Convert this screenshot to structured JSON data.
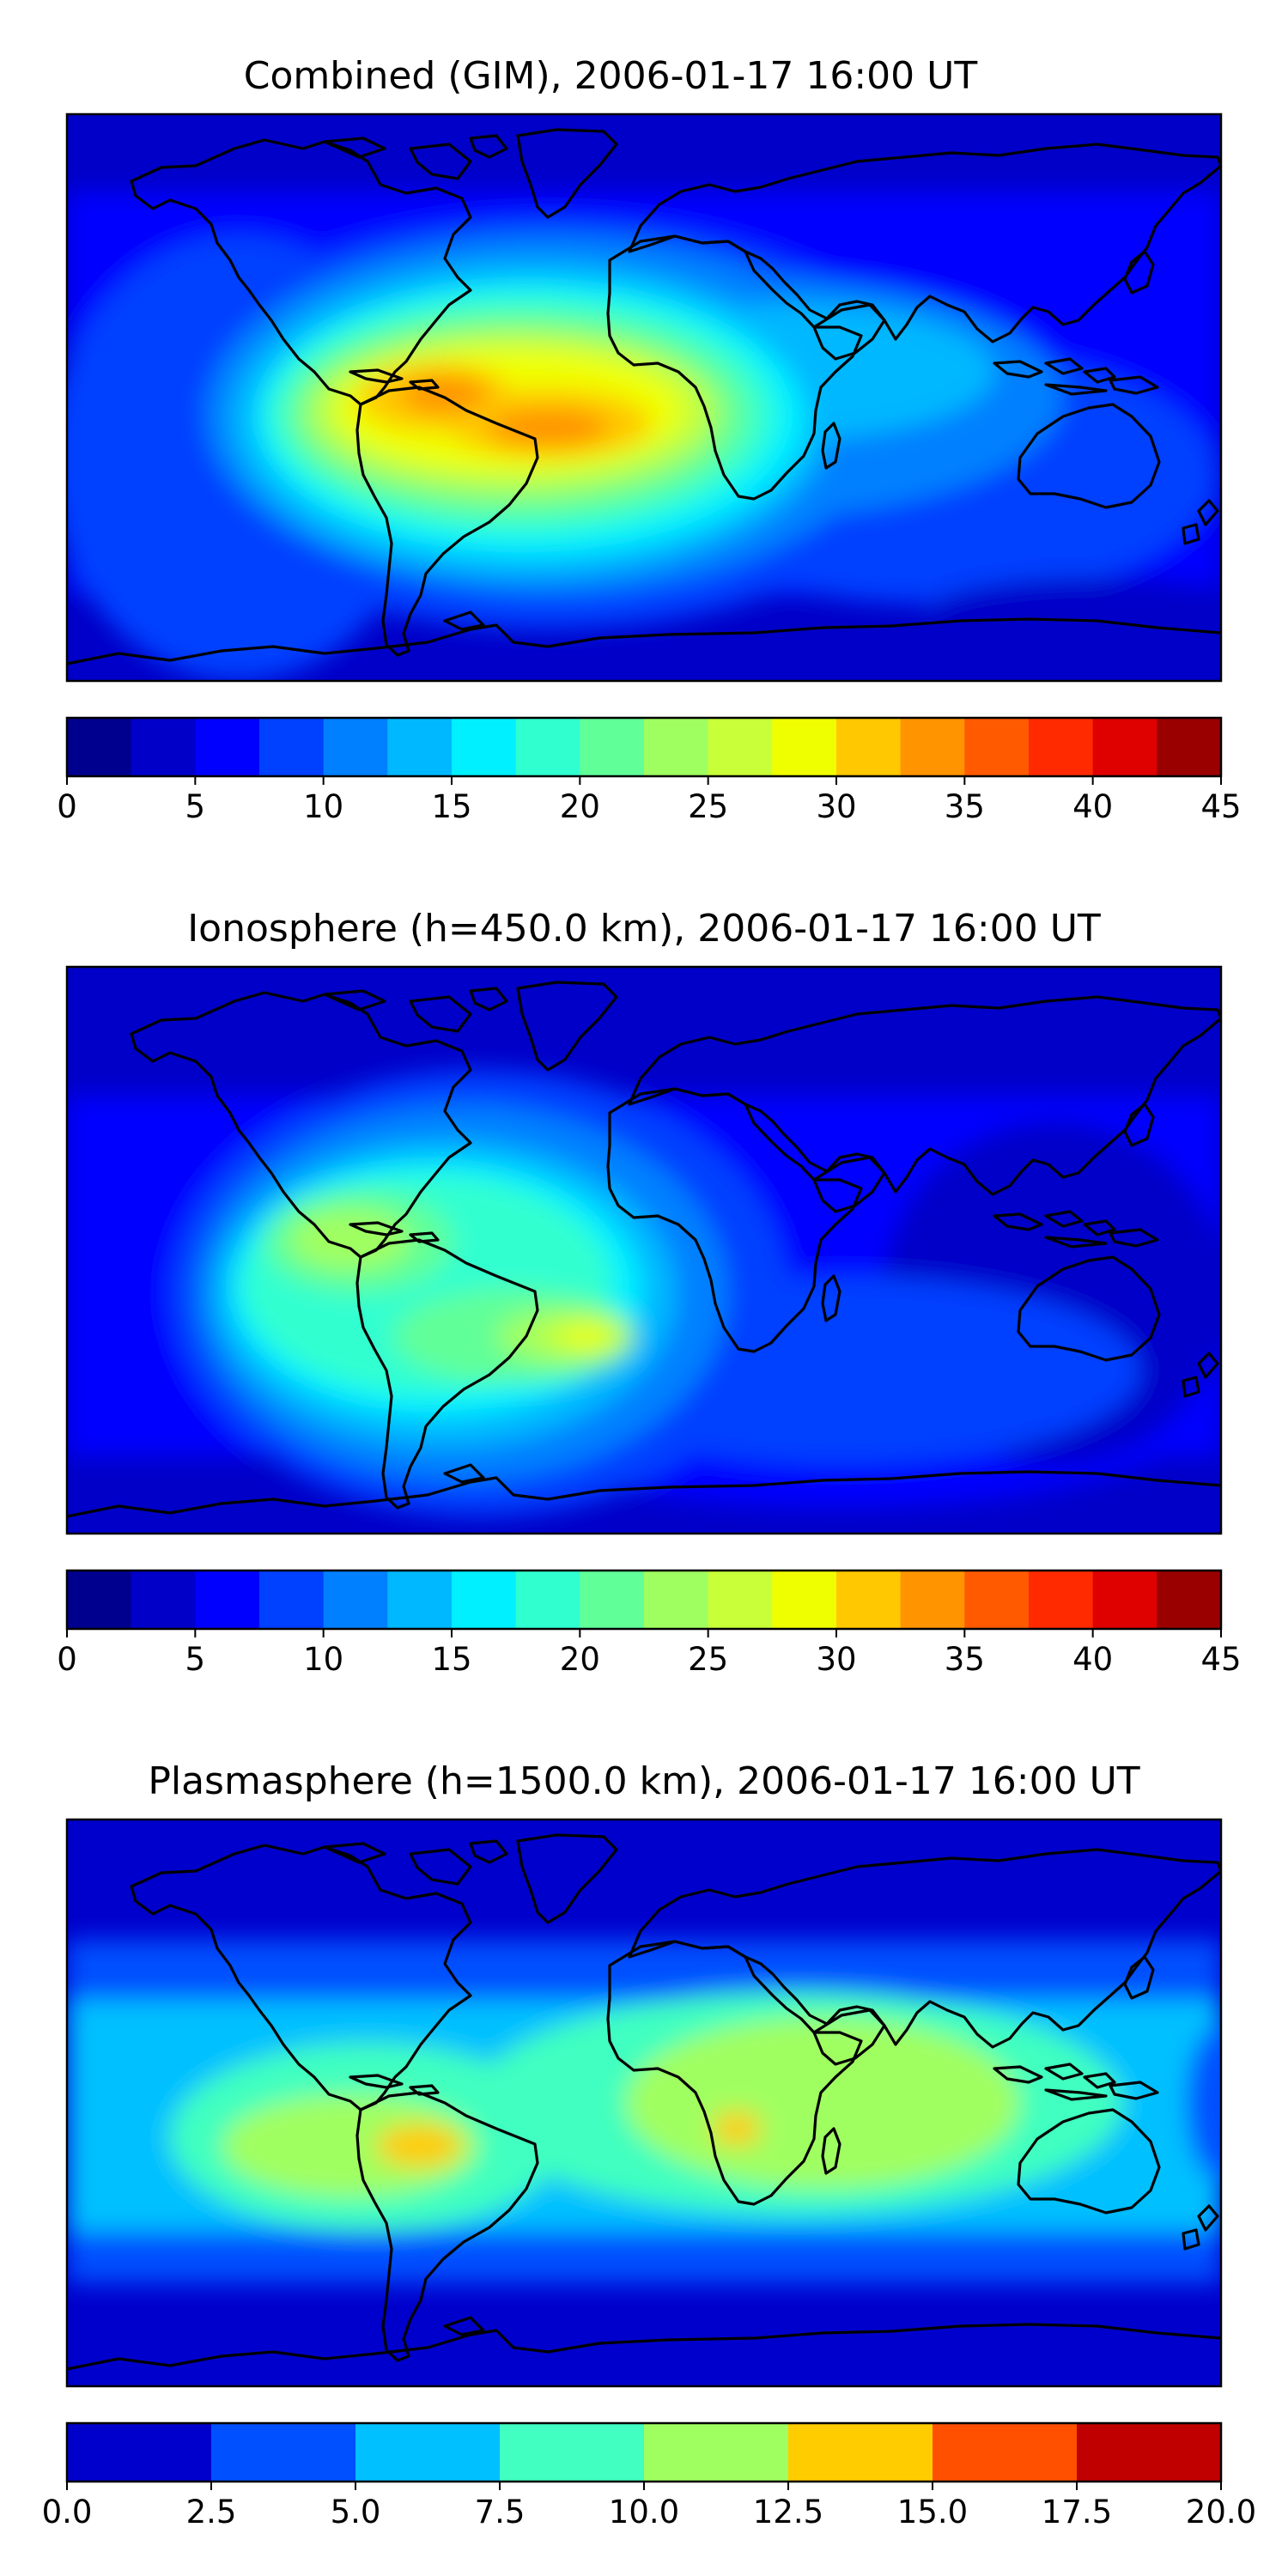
{
  "panels": [
    {
      "title": "Combined (GIM), 2006-01-17 16:00 UT",
      "colorbar": {
        "min": 0,
        "max": 45,
        "step": 2.5,
        "ticks": [
          "0",
          "5",
          "10",
          "15",
          "20",
          "25",
          "30",
          "35",
          "40",
          "45"
        ],
        "colors": [
          "#00008f",
          "#0000c8",
          "#0000ff",
          "#0040ff",
          "#0080ff",
          "#00b8ff",
          "#00f0ff",
          "#30ffd0",
          "#60ff98",
          "#a0ff60",
          "#c8ff38",
          "#f0ff00",
          "#ffc800",
          "#ff9400",
          "#ff5a00",
          "#ff2a00",
          "#df0000",
          "#9a0000"
        ]
      }
    },
    {
      "title": "Ionosphere  (h=450.0 km), 2006-01-17 16:00 UT",
      "colorbar": {
        "min": 0,
        "max": 45,
        "step": 2.5,
        "ticks": [
          "0",
          "5",
          "10",
          "15",
          "20",
          "25",
          "30",
          "35",
          "40",
          "45"
        ],
        "colors": [
          "#00008f",
          "#0000c8",
          "#0000ff",
          "#0040ff",
          "#0080ff",
          "#00b8ff",
          "#00f0ff",
          "#30ffd0",
          "#60ff98",
          "#a0ff60",
          "#c8ff38",
          "#f0ff00",
          "#ffc800",
          "#ff9400",
          "#ff5a00",
          "#ff2a00",
          "#df0000",
          "#9a0000"
        ]
      }
    },
    {
      "title": "Plasmasphere (h=1500.0 km), 2006-01-17 16:00 UT",
      "colorbar": {
        "min": 0,
        "max": 20,
        "step": 2.5,
        "ticks": [
          "0.0",
          "2.5",
          "5.0",
          "7.5",
          "10.0",
          "12.5",
          "15.0",
          "17.5",
          "20.0"
        ],
        "colors": [
          "#0000cc",
          "#0050ff",
          "#00c0ff",
          "#40ffc0",
          "#a0ff60",
          "#ffcc00",
          "#ff5000",
          "#c00000"
        ]
      }
    }
  ]
}
